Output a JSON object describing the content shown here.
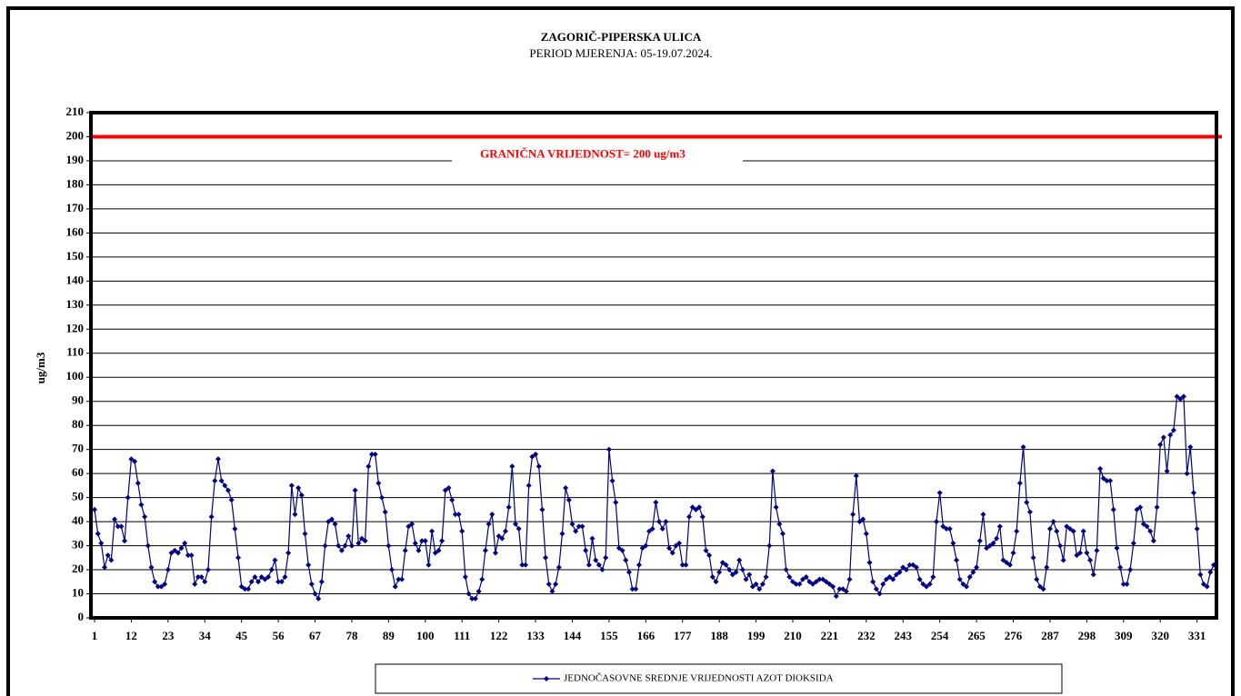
{
  "chart_data": {
    "type": "line",
    "title": "ZAGORIČ-PIPERSKA  ULICA",
    "subtitle": "PERIOD MJERENJA:  05-19.07.2024.",
    "y_label": "ug/m3",
    "threshold": {
      "value": 200,
      "label": "GRANIČNA VRIJEDNOST= 200 ug/m3",
      "color": "#ff0000"
    },
    "ylim": [
      0,
      210
    ],
    "yticks": [
      0,
      10,
      20,
      30,
      40,
      50,
      60,
      70,
      80,
      90,
      100,
      110,
      120,
      130,
      140,
      150,
      160,
      170,
      180,
      190,
      200,
      210
    ],
    "xlim": [
      1,
      336
    ],
    "xticks": [
      1,
      12,
      23,
      34,
      45,
      56,
      67,
      78,
      89,
      100,
      111,
      122,
      133,
      144,
      155,
      166,
      177,
      188,
      199,
      210,
      221,
      232,
      243,
      254,
      265,
      276,
      287,
      298,
      309,
      320,
      331
    ],
    "grid": true,
    "legend": "bottom",
    "x": [
      1,
      2,
      3,
      4,
      5,
      6,
      7,
      8,
      9,
      10,
      11,
      12,
      13,
      14,
      15,
      16,
      17,
      18,
      19,
      20,
      21,
      22,
      23,
      24,
      25,
      26,
      27,
      28,
      29,
      30,
      31,
      32,
      33,
      34,
      35,
      36,
      37,
      38,
      39,
      40,
      41,
      42,
      43,
      44,
      45,
      46,
      47,
      48,
      49,
      50,
      51,
      52,
      53,
      54,
      55,
      56,
      57,
      58,
      59,
      60,
      61,
      62,
      63,
      64,
      65,
      66,
      67,
      68,
      69,
      70,
      71,
      72,
      73,
      74,
      75,
      76,
      77,
      78,
      79,
      80,
      81,
      82,
      83,
      84,
      85,
      86,
      87,
      88,
      89,
      90,
      91,
      92,
      93,
      94,
      95,
      96,
      97,
      98,
      99,
      100,
      101,
      102,
      103,
      104,
      105,
      106,
      107,
      108,
      109,
      110,
      111,
      112,
      113,
      114,
      115,
      116,
      117,
      118,
      119,
      120,
      121,
      122,
      123,
      124,
      125,
      126,
      127,
      128,
      129,
      130,
      131,
      132,
      133,
      134,
      135,
      136,
      137,
      138,
      139,
      140,
      141,
      142,
      143,
      144,
      145,
      146,
      147,
      148,
      149,
      150,
      151,
      152,
      153,
      154,
      155,
      156,
      157,
      158,
      159,
      160,
      161,
      162,
      163,
      164,
      165,
      166,
      167,
      168,
      169,
      170,
      171,
      172,
      173,
      174,
      175,
      176,
      177,
      178,
      179,
      180,
      181,
      182,
      183,
      184,
      185,
      186,
      187,
      188,
      189,
      190,
      191,
      192,
      193,
      194,
      195,
      196,
      197,
      198,
      199,
      200,
      201,
      202,
      203,
      204,
      205,
      206,
      207,
      208,
      209,
      210,
      211,
      212,
      213,
      214,
      215,
      216,
      217,
      218,
      219,
      220,
      221,
      222,
      223,
      224,
      225,
      226,
      227,
      228,
      229,
      230,
      231,
      232,
      233,
      234,
      235,
      236,
      237,
      238,
      239,
      240,
      241,
      242,
      243,
      244,
      245,
      246,
      247,
      248,
      249,
      250,
      251,
      252,
      253,
      254,
      255,
      256,
      257,
      258,
      259,
      260,
      261,
      262,
      263,
      264,
      265,
      266,
      267,
      268,
      269,
      270,
      271,
      272,
      273,
      274,
      275,
      276,
      277,
      278,
      279,
      280,
      281,
      282,
      283,
      284,
      285,
      286,
      287,
      288,
      289,
      290,
      291,
      292,
      293,
      294,
      295,
      296,
      297,
      298,
      299,
      300,
      301,
      302,
      303,
      304,
      305,
      306,
      307,
      308,
      309,
      310,
      311,
      312,
      313,
      314,
      315,
      316,
      317,
      318,
      319,
      320,
      321,
      322,
      323,
      324,
      325,
      326,
      327,
      328,
      329,
      330,
      331,
      332,
      333,
      334,
      335,
      336
    ],
    "series": [
      {
        "name": "JEDNOČASOVNE SREDNJE VRIJEDNOSTI AZOT DIOKSIDA",
        "color": "#000080",
        "values": [
          45,
          35,
          31,
          21,
          26,
          24,
          41,
          38,
          38,
          32,
          50,
          66,
          65,
          56,
          47,
          42,
          30,
          21,
          15,
          13,
          13,
          14,
          20,
          27,
          28,
          27,
          29,
          31,
          26,
          26,
          14,
          17,
          17,
          15,
          20,
          42,
          57,
          66,
          57,
          55,
          53,
          49,
          37,
          25,
          13,
          12,
          12,
          15,
          17,
          15,
          17,
          16,
          17,
          20,
          24,
          15,
          15,
          17,
          27,
          55,
          43,
          54,
          51,
          35,
          22,
          14,
          10,
          8,
          15,
          30,
          40,
          41,
          39,
          30,
          28,
          30,
          34,
          30,
          53,
          31,
          33,
          32,
          63,
          68,
          68,
          56,
          50,
          44,
          30,
          20,
          13,
          16,
          16,
          28,
          38,
          39,
          31,
          28,
          32,
          32,
          22,
          36,
          27,
          28,
          32,
          53,
          54,
          49,
          43,
          43,
          36,
          17,
          10,
          8,
          8,
          11,
          16,
          28,
          39,
          43,
          27,
          34,
          33,
          36,
          46,
          63,
          39,
          37,
          22,
          22,
          55,
          67,
          68,
          63,
          45,
          25,
          14,
          11,
          14,
          21,
          35,
          54,
          49,
          39,
          36,
          38,
          38,
          28,
          22,
          33,
          24,
          22,
          20,
          25,
          70,
          57,
          48,
          29,
          28,
          24,
          19,
          12,
          12,
          22,
          29,
          30,
          36,
          37,
          48,
          40,
          37,
          40,
          29,
          27,
          30,
          31,
          22,
          22,
          42,
          46,
          45,
          46,
          42,
          28,
          26,
          17,
          15,
          19,
          23,
          22,
          20,
          18,
          19,
          24,
          20,
          16,
          18,
          13,
          14,
          12,
          14,
          17,
          30,
          61,
          46,
          39,
          35,
          20,
          17,
          15,
          14,
          14,
          16,
          17,
          15,
          14,
          15,
          16,
          16,
          15,
          14,
          13,
          9,
          12,
          12,
          11,
          16,
          43,
          59,
          40,
          41,
          35,
          23,
          15,
          12,
          10,
          14,
          16,
          17,
          16,
          18,
          19,
          21,
          20,
          22,
          22,
          21,
          16,
          14,
          13,
          14,
          17,
          40,
          52,
          38,
          37,
          37,
          31,
          24,
          16,
          14,
          13,
          17,
          19,
          21,
          32,
          43,
          29,
          30,
          31,
          33,
          38,
          24,
          23,
          22,
          27,
          36,
          56,
          71,
          48,
          44,
          25,
          16,
          13,
          12,
          21,
          37,
          40,
          36,
          30,
          24,
          38,
          37,
          36,
          26,
          27,
          36,
          27,
          24,
          18,
          28,
          62,
          58,
          57,
          57,
          45,
          29,
          21,
          14,
          14,
          20,
          31,
          45,
          46,
          39,
          38,
          36,
          32,
          46,
          72,
          75,
          61,
          76,
          78,
          92,
          91,
          92,
          60,
          71,
          52,
          37,
          18,
          14,
          13,
          19,
          22
        ]
      }
    ]
  }
}
